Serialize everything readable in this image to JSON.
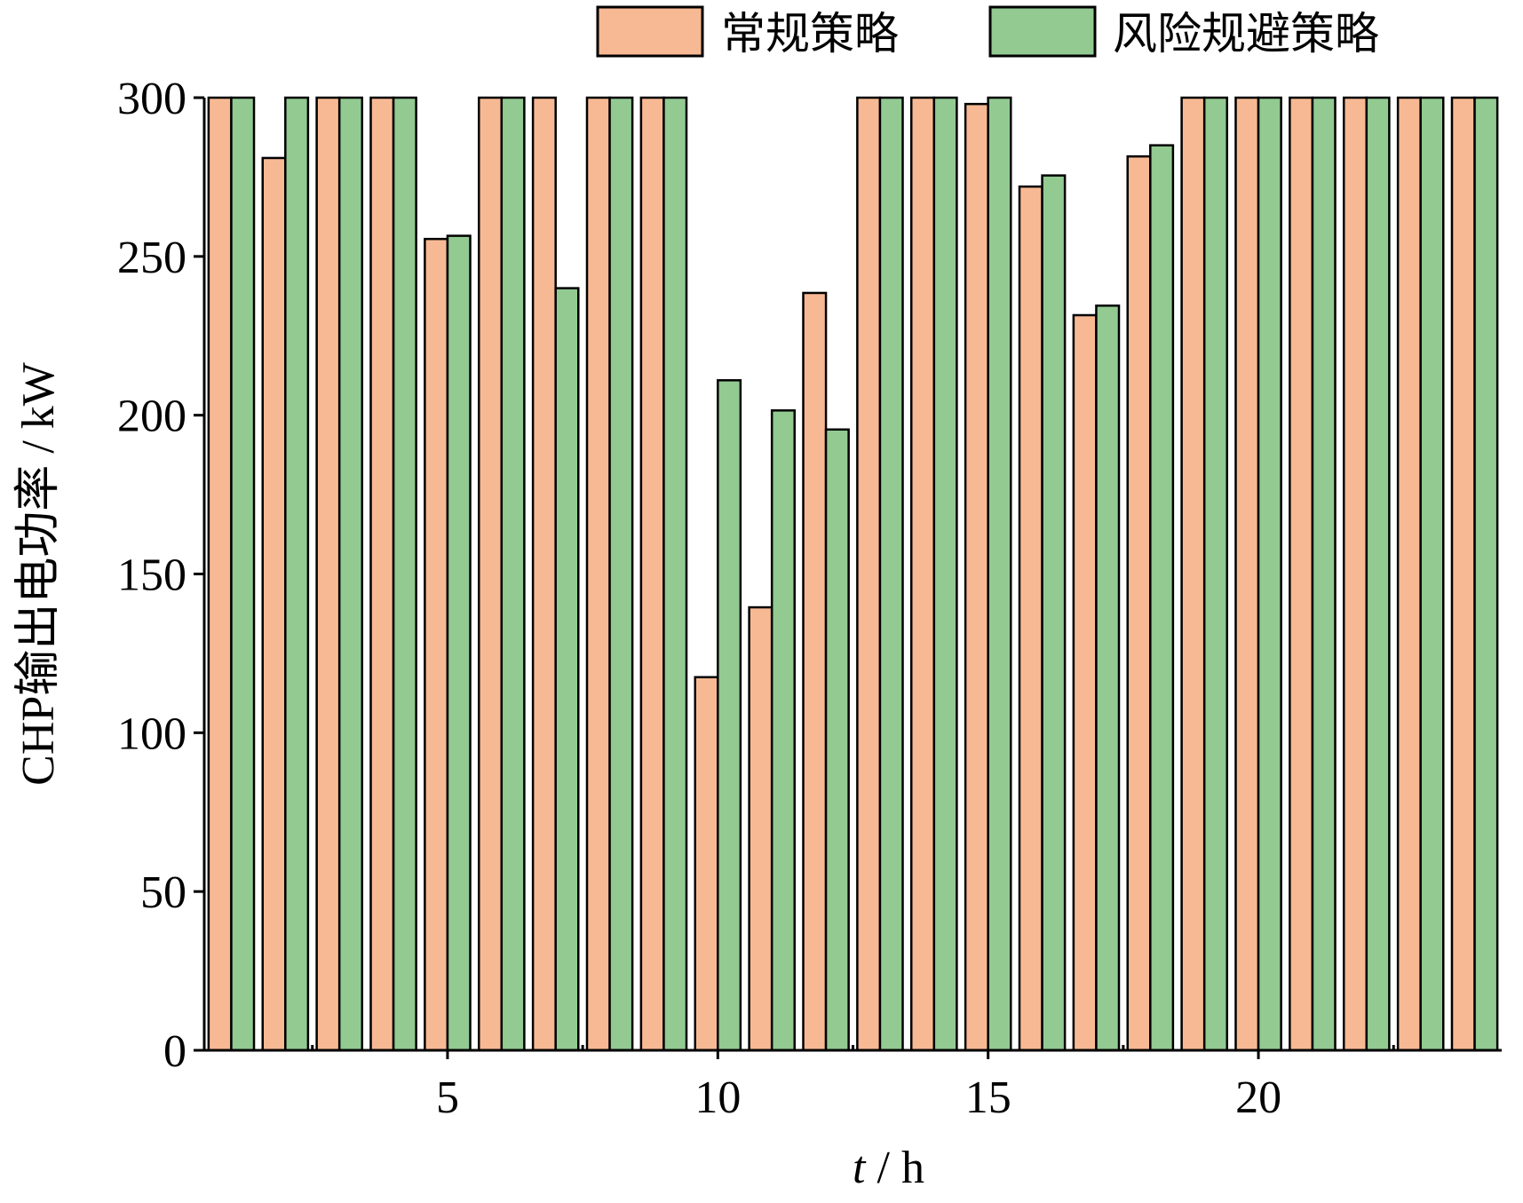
{
  "chart_data": {
    "type": "bar",
    "x": [
      1,
      2,
      3,
      4,
      5,
      6,
      7,
      8,
      9,
      10,
      11,
      12,
      13,
      14,
      15,
      16,
      17,
      18,
      19,
      20,
      21,
      22,
      23,
      24
    ],
    "series": [
      {
        "name": "常规策略",
        "color": "#F7B993",
        "values": [
          300,
          281,
          300,
          300,
          255.5,
          300,
          300,
          300,
          300,
          117.5,
          139.5,
          238.5,
          300,
          300,
          298,
          272,
          231.5,
          281.5,
          300,
          300,
          300,
          300,
          300,
          300
        ]
      },
      {
        "name": "风险规避策略",
        "color": "#92CA92",
        "values": [
          300,
          300,
          300,
          300,
          256.5,
          300,
          240,
          300,
          300,
          211,
          201.5,
          195.5,
          300,
          300,
          300,
          275.5,
          234.5,
          285,
          300,
          300,
          300,
          300,
          300,
          300
        ]
      }
    ],
    "xlabel_var": "t",
    "xlabel_unit": " / h",
    "ylabel": "CHP输出电功率 / kW",
    "xticks": [
      5,
      10,
      15,
      20
    ],
    "yticks": [
      0,
      50,
      100,
      150,
      200,
      250,
      300
    ],
    "ylim": [
      0,
      300
    ],
    "xlim": [
      0.5,
      24.5
    ],
    "grid": false,
    "legend_position": "top-right"
  }
}
